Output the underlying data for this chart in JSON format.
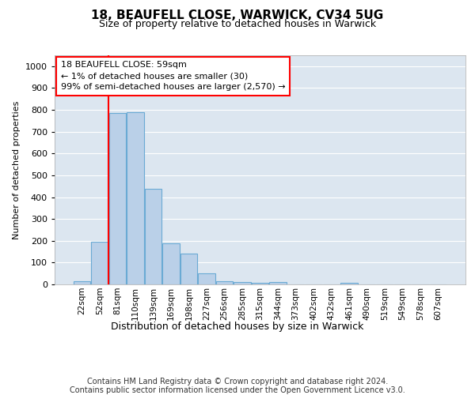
{
  "title": "18, BEAUFELL CLOSE, WARWICK, CV34 5UG",
  "subtitle": "Size of property relative to detached houses in Warwick",
  "xlabel": "Distribution of detached houses by size in Warwick",
  "ylabel": "Number of detached properties",
  "footer_line1": "Contains HM Land Registry data © Crown copyright and database right 2024.",
  "footer_line2": "Contains public sector information licensed under the Open Government Licence v3.0.",
  "bar_labels": [
    "22sqm",
    "52sqm",
    "81sqm",
    "110sqm",
    "139sqm",
    "169sqm",
    "198sqm",
    "227sqm",
    "256sqm",
    "285sqm",
    "315sqm",
    "344sqm",
    "373sqm",
    "402sqm",
    "432sqm",
    "461sqm",
    "490sqm",
    "519sqm",
    "549sqm",
    "578sqm",
    "607sqm"
  ],
  "bar_values": [
    15,
    195,
    785,
    790,
    437,
    190,
    140,
    50,
    15,
    10,
    7,
    10,
    0,
    0,
    0,
    8,
    0,
    0,
    0,
    0,
    0
  ],
  "bar_color": "#bad0e8",
  "bar_edge_color": "#6aaad4",
  "ylim": [
    0,
    1050
  ],
  "yticks": [
    0,
    100,
    200,
    300,
    400,
    500,
    600,
    700,
    800,
    900,
    1000
  ],
  "annotation_title": "18 BEAUFELL CLOSE: 59sqm",
  "annotation_line2": "← 1% of detached houses are smaller (30)",
  "annotation_line3": "99% of semi-detached houses are larger (2,570) →",
  "vline_bin_index": 1,
  "background_color": "#dce6f0",
  "grid_color": "#ffffff"
}
